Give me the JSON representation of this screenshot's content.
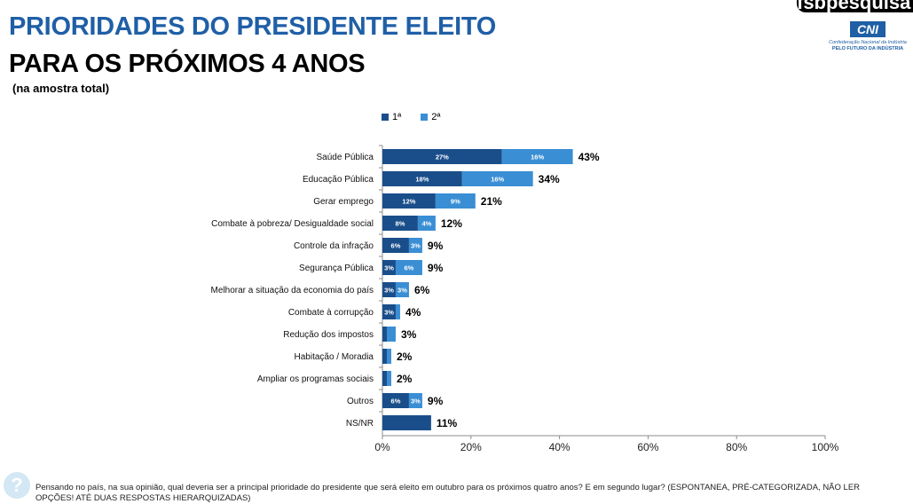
{
  "header": {
    "title_line1": "PRIORIDADES DO PRESIDENTE ELEITO",
    "title_line2": "PARA OS PRÓXIMOS 4 ANOS",
    "subtitle": "(na amostra total)"
  },
  "brand": {
    "fsb": "fsbpesquisa",
    "cni_mark": "CNI",
    "cni_name": "Confederação Nacional da Indústria",
    "cni_tagline": "PELO FUTURO DA INDÚSTRIA"
  },
  "colors": {
    "first": "#1a4e8a",
    "second": "#3a8ed4",
    "axis": "#8c8c8c"
  },
  "chart_data": {
    "type": "bar",
    "orientation": "horizontal",
    "stacked": true,
    "categories": [
      "Saúde Pública",
      "Educação Pública",
      "Gerar emprego",
      "Combate à pobreza/ Desigualdade social",
      "Controle da infração",
      "Segurança Pública",
      "Melhorar a situação da economia do país",
      "Combate à corrupção",
      "Redução dos impostos",
      "Habitação / Moradia",
      "Ampliar os programas sociais",
      "Outros",
      "NS/NR"
    ],
    "series": [
      {
        "name": "1ª",
        "values": [
          27,
          18,
          12,
          8,
          6,
          3,
          3,
          3,
          1,
          1,
          1,
          6,
          11
        ],
        "labels": [
          "27%",
          "18%",
          "12%",
          "8%",
          "6%",
          "3%",
          "3%",
          "3%",
          "",
          "",
          "",
          "6%",
          ""
        ]
      },
      {
        "name": "2ª",
        "values": [
          16,
          16,
          9,
          4,
          3,
          6,
          3,
          1,
          2,
          1,
          1,
          3,
          0
        ],
        "labels": [
          "16%",
          "16%",
          "9%",
          "4%",
          "3%",
          "6%",
          "3%",
          "",
          "",
          "",
          "",
          "3%",
          ""
        ]
      }
    ],
    "totals": [
      43,
      34,
      21,
      12,
      9,
      9,
      6,
      4,
      3,
      2,
      2,
      9,
      11
    ],
    "total_labels": [
      "43%",
      "34%",
      "21%",
      "12%",
      "9%",
      "9%",
      "6%",
      "4%",
      "3%",
      "2%",
      "2%",
      "9%",
      "11%"
    ],
    "xlim": [
      0,
      100
    ],
    "xticks": [
      0,
      20,
      40,
      60,
      80,
      100
    ],
    "xtick_labels": [
      "0%",
      "20%",
      "40%",
      "60%",
      "80%",
      "100%"
    ],
    "legend_position": "top",
    "grid": false
  },
  "footnote": "Pensando no país, na sua opinião, qual deveria ser a principal prioridade do presidente que será eleito em outubro para os próximos quatro anos? E em segundo lugar? (ESPONTANEA, PRÉ-CATEGORIZADA, NÃO LER OPÇÕES! ATÉ DUAS RESPOSTAS HIERARQUIZADAS)"
}
